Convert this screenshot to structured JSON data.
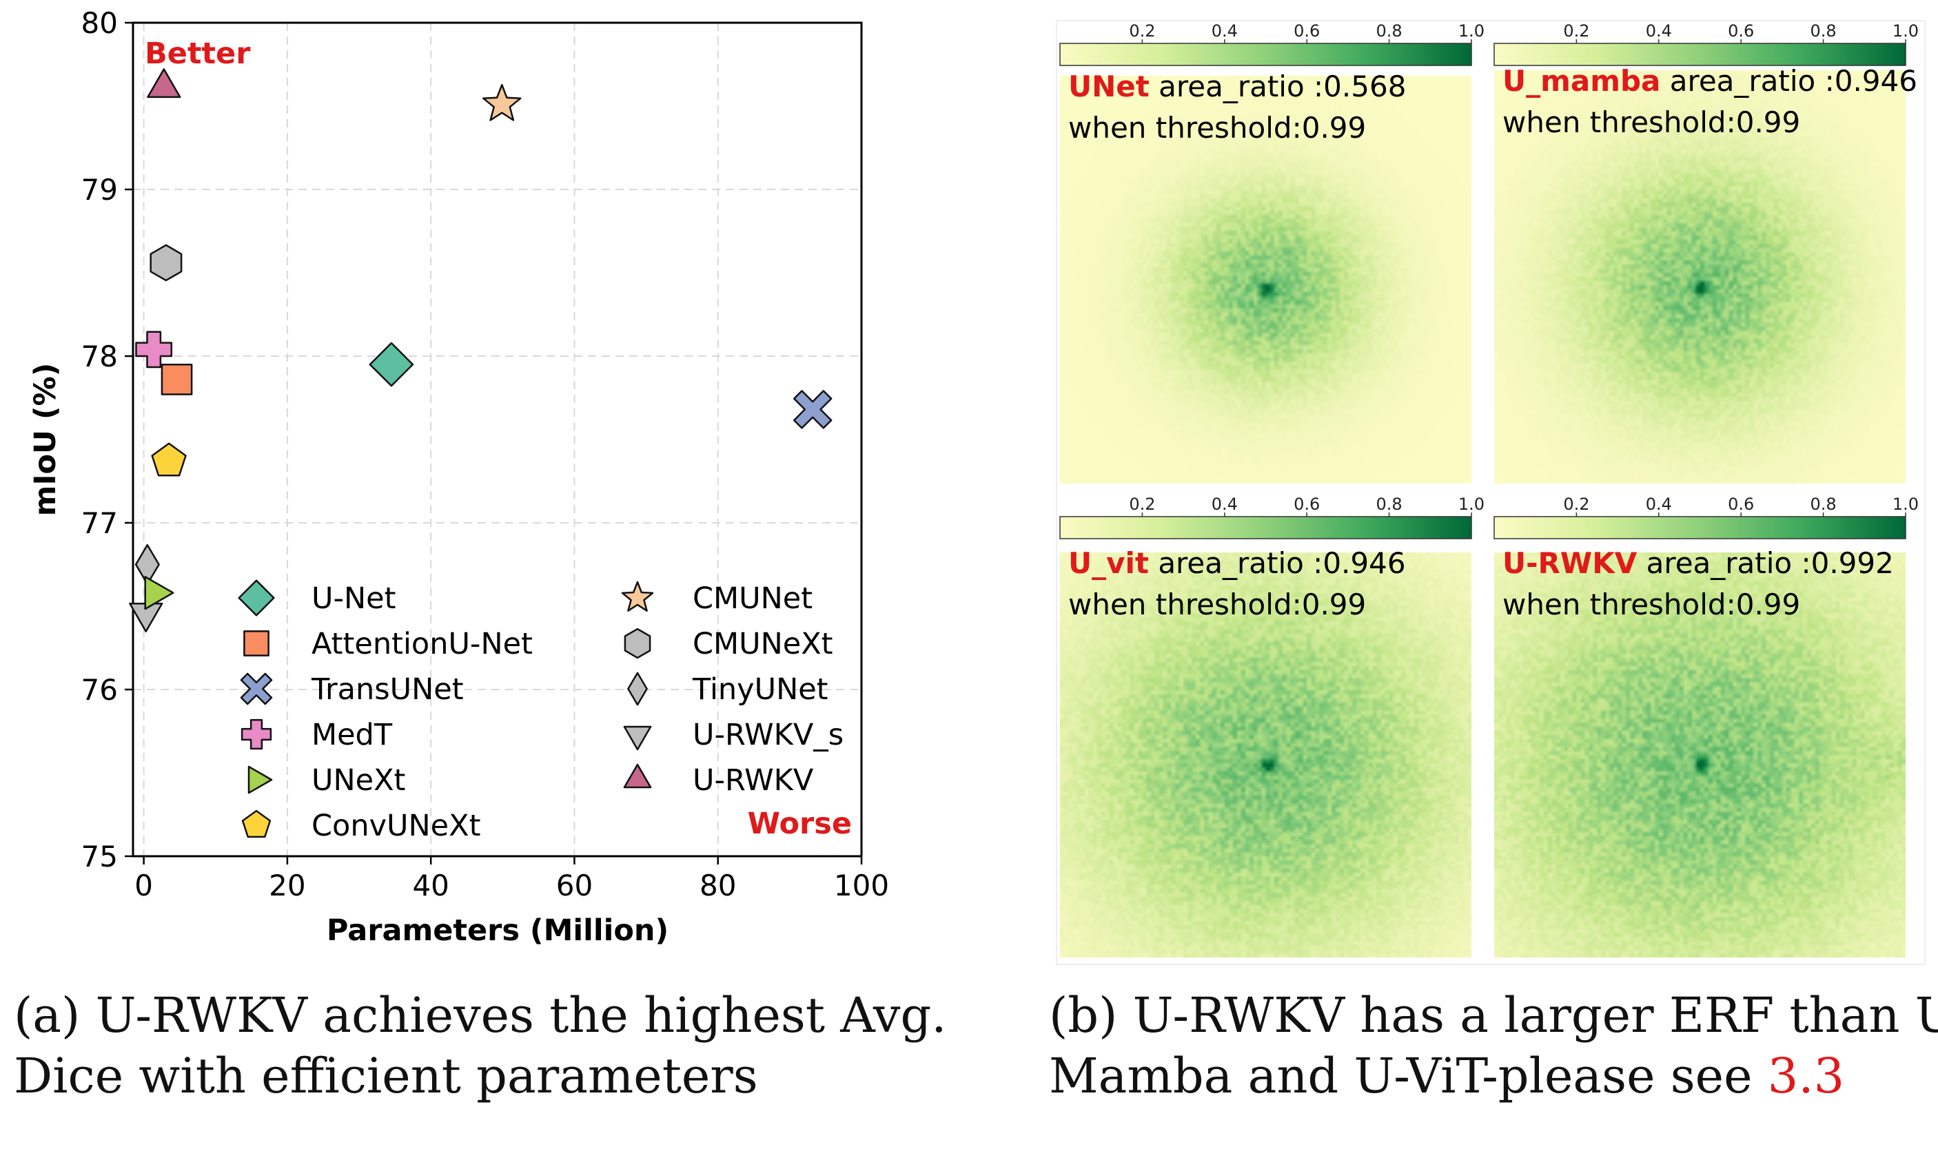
{
  "chart_data": [
    {
      "type": "scatter",
      "xlabel": "Parameters (Million)",
      "ylabel": "mIoU (%)",
      "xlim": [
        -1.5,
        100
      ],
      "ylim": [
        75,
        80
      ],
      "xticks": [
        "0",
        "20",
        "40",
        "60",
        "80",
        "100"
      ],
      "yticks": [
        "75",
        "76",
        "77",
        "78",
        "79",
        "80"
      ],
      "grid": true,
      "legend_position": "lower right, two columns",
      "annotations": [
        {
          "text": "Better",
          "color": "#e0191b",
          "position": "top-left"
        },
        {
          "text": "Worse",
          "color": "#e0191b",
          "position": "bottom-right"
        }
      ],
      "series": [
        {
          "name": "U-Net",
          "x": 34.5,
          "y": 77.95,
          "marker": "diamond",
          "color": "#5cbf9f"
        },
        {
          "name": "AttentionU-Net",
          "x": 4.6,
          "y": 77.86,
          "marker": "square",
          "color": "#f98d60"
        },
        {
          "name": "TransUNet",
          "x": 93.2,
          "y": 77.68,
          "marker": "x",
          "color": "#8c9fcf"
        },
        {
          "name": "MedT",
          "x": 1.4,
          "y": 78.04,
          "marker": "plus",
          "color": "#e88bc6"
        },
        {
          "name": "UNeXt",
          "x": 1.5,
          "y": 76.58,
          "marker": "triangle-right",
          "color": "#a6d24e"
        },
        {
          "name": "ConvUNeXt",
          "x": 3.5,
          "y": 77.37,
          "marker": "pentagon",
          "color": "#ffd43b"
        },
        {
          "name": "CMUNet",
          "x": 49.9,
          "y": 79.51,
          "marker": "star",
          "color": "#f7c99a"
        },
        {
          "name": "CMUNeXt",
          "x": 3.1,
          "y": 78.56,
          "marker": "hexagon",
          "color": "#bdbdbd"
        },
        {
          "name": "TinyUNet",
          "x": 0.5,
          "y": 76.75,
          "marker": "thin-diamond",
          "color": "#bdbdbd"
        },
        {
          "name": "U-RWKV_s",
          "x": 0.3,
          "y": 76.46,
          "marker": "triangle-down",
          "color": "#bdbdbd"
        },
        {
          "name": "U-RWKV",
          "x": 2.8,
          "y": 79.61,
          "marker": "triangle-up",
          "color": "#c5688a"
        }
      ]
    },
    {
      "type": "heatmap",
      "colorbar_ticks": [
        "0.2",
        "0.4",
        "0.6",
        "0.8",
        "1.0"
      ],
      "colormap": [
        "#fbfbc4",
        "#c1e587",
        "#74c476",
        "#31a354",
        "#006837"
      ],
      "panels": [
        {
          "model": "UNet",
          "area_ratio": "area_ratio :0.568",
          "threshold": "when threshold:0.99",
          "spread": 0.16
        },
        {
          "model": "U_mamba",
          "area_ratio": "area_ratio :0.946",
          "threshold": "when threshold:0.99",
          "spread": 0.2
        },
        {
          "model": "U_vit",
          "area_ratio": "area_ratio :0.946",
          "threshold": "when threshold:0.99",
          "spread": 0.3
        },
        {
          "model": "U-RWKV",
          "area_ratio": "area_ratio :0.992",
          "threshold": "when threshold:0.99",
          "spread": 0.34
        }
      ]
    }
  ],
  "captions": {
    "a_line1": "(a) U-RWKV achieves the highest Avg.",
    "a_line2": "Dice with efficient parameters",
    "b_line1": "(b) U-RWKV has a larger ERF than U-",
    "b_line2": "Mamba and U-ViT-please see ",
    "b_ref": "3.3"
  }
}
